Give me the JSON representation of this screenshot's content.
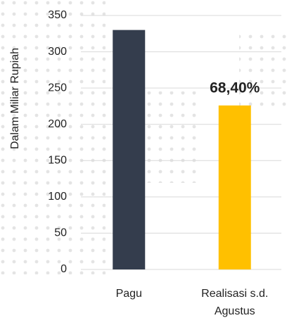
{
  "chart_data": {
    "type": "bar",
    "ylabel": "Dalam Miliar Rupiah",
    "categories": [
      "Pagu",
      "Realisasi s.d. Agustus"
    ],
    "values": [
      330,
      226
    ],
    "colors": [
      "#343d4d",
      "#ffc000"
    ],
    "annotation": "68,40%",
    "ylim": [
      0,
      350
    ],
    "yticks": [
      0,
      50,
      100,
      150,
      200,
      250,
      300,
      350
    ],
    "grid": true
  }
}
